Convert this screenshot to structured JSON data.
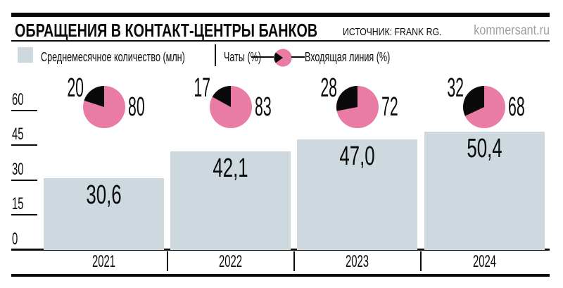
{
  "header": {
    "title": "ОБРАЩЕНИЯ В КОНТАКТ-ЦЕНТРЫ БАНКОВ",
    "source": "ИСТОЧНИК: FRANK RG.",
    "site": "kommersant.ru"
  },
  "legend": {
    "bars_label": "Среднемесячное количество (млн)",
    "chats_label": "Чаты (%)",
    "line_label": "Входящая линия (%)"
  },
  "colors": {
    "bar_fill": "#cdd9de",
    "pie_pink": "#e87ca4",
    "pie_black": "#0a0a0a",
    "site_gray": "#9aa0a4",
    "ink": "#0a0a0a"
  },
  "chart_data": {
    "type": "bar",
    "title": "ОБРАЩЕНИЯ В КОНТАКТ-ЦЕНТРЫ БАНКОВ",
    "source": "ИСТОЧНИК: FRANK RG.",
    "categories": [
      "2021",
      "2022",
      "2023",
      "2024"
    ],
    "series": [
      {
        "name": "Среднемесячное количество (млн)",
        "type": "bar",
        "values": [
          30.6,
          42.1,
          47.0,
          50.4
        ],
        "value_labels": [
          "30,6",
          "42,1",
          "47,0",
          "50,4"
        ],
        "color": "#cdd9de"
      },
      {
        "name": "Чаты (%)",
        "type": "pie-share",
        "values": [
          20,
          17,
          28,
          32
        ],
        "color": "#0a0a0a"
      },
      {
        "name": "Входящая линия (%)",
        "type": "pie-share",
        "values": [
          80,
          83,
          72,
          68
        ],
        "color": "#e87ca4"
      }
    ],
    "yticks": [
      0,
      15,
      30,
      45,
      60
    ],
    "ylim": [
      0,
      62
    ],
    "xlabel": "",
    "ylabel": "",
    "grid": false,
    "legend_position": "top"
  }
}
